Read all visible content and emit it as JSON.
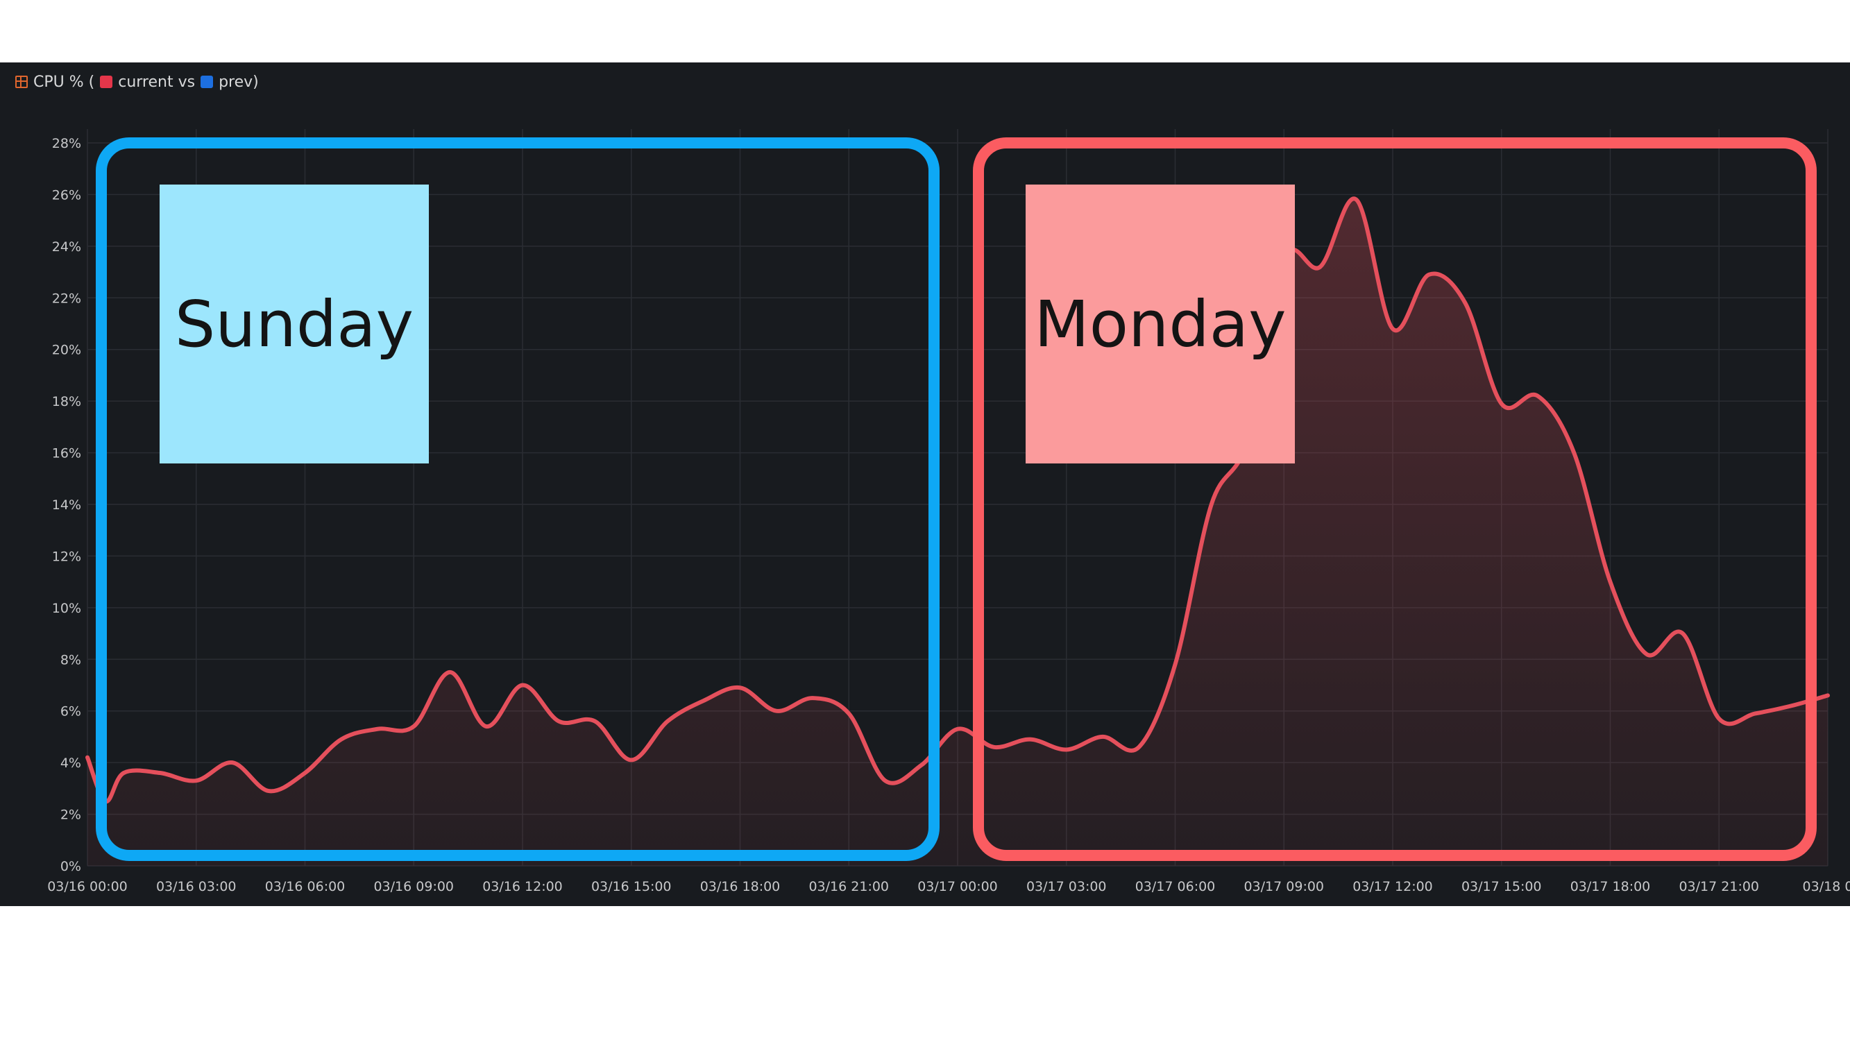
{
  "panel": {
    "title_prefix": "CPU % (",
    "current_label": "current vs",
    "prev_label": "prev)",
    "icons": {
      "title": "table-calendar-icon",
      "current": "red-square",
      "prev": "blue-square"
    },
    "colors": {
      "current": "#e5505c",
      "prev": "#1d6fe0",
      "title_icon": "#e0662e"
    }
  },
  "chart_data": {
    "type": "area",
    "title": "CPU % (current vs prev)",
    "xlabel": "",
    "ylabel": "",
    "ylim": [
      0,
      28
    ],
    "yticks": [
      "0%",
      "2%",
      "4%",
      "6%",
      "8%",
      "10%",
      "12%",
      "14%",
      "16%",
      "18%",
      "20%",
      "22%",
      "24%",
      "26%",
      "28%"
    ],
    "xticks": [
      "03/16 00:00",
      "03/16 03:00",
      "03/16 06:00",
      "03/16 09:00",
      "03/16 12:00",
      "03/16 15:00",
      "03/16 18:00",
      "03/16 21:00",
      "03/17 00:00",
      "03/17 03:00",
      "03/17 06:00",
      "03/17 09:00",
      "03/17 12:00",
      "03/17 15:00",
      "03/17 18:00",
      "03/17 21:00",
      "03/18 0"
    ],
    "grid": true,
    "series": [
      {
        "name": "current",
        "color": "#e5505c",
        "x": [
          "03/16 00:00",
          "03/16 00:30",
          "03/16 01:00",
          "03/16 02:00",
          "03/16 03:00",
          "03/16 04:00",
          "03/16 05:00",
          "03/16 06:00",
          "03/16 07:00",
          "03/16 08:00",
          "03/16 09:00",
          "03/16 10:00",
          "03/16 11:00",
          "03/16 12:00",
          "03/16 13:00",
          "03/16 14:00",
          "03/16 15:00",
          "03/16 16:00",
          "03/16 17:00",
          "03/16 18:00",
          "03/16 19:00",
          "03/16 20:00",
          "03/16 21:00",
          "03/16 22:00",
          "03/16 23:00",
          "03/17 00:00",
          "03/17 01:00",
          "03/17 02:00",
          "03/17 03:00",
          "03/17 04:00",
          "03/17 05:00",
          "03/17 06:00",
          "03/17 07:00",
          "03/17 08:00",
          "03/17 09:00",
          "03/17 10:00",
          "03/17 11:00",
          "03/17 12:00",
          "03/17 13:00",
          "03/17 14:00",
          "03/17 15:00",
          "03/17 16:00",
          "03/17 17:00",
          "03/17 18:00",
          "03/17 19:00",
          "03/17 20:00",
          "03/17 21:00",
          "03/17 22:00",
          "03/17 23:00",
          "03/18 00:00"
        ],
        "values": [
          4.2,
          2.5,
          3.6,
          3.6,
          3.3,
          4.0,
          2.9,
          3.6,
          4.9,
          5.3,
          5.4,
          7.5,
          5.4,
          7.0,
          5.6,
          5.6,
          4.1,
          5.6,
          6.4,
          6.9,
          6.0,
          6.5,
          5.9,
          3.3,
          3.9,
          5.3,
          4.6,
          4.9,
          4.5,
          5.0,
          4.6,
          7.8,
          14.0,
          16.5,
          23.5,
          23.2,
          25.8,
          20.8,
          22.9,
          21.8,
          17.9,
          18.2,
          16.0,
          11.0,
          8.2,
          9.0,
          5.7,
          5.9,
          6.2,
          6.6
        ]
      }
    ],
    "annotations": [
      {
        "label": "Sunday",
        "color": "#0ea8f5",
        "box_color": "#9de6fd"
      },
      {
        "label": "Monday",
        "color": "#fb5c61",
        "box_color": "#fb9b9c"
      }
    ]
  }
}
